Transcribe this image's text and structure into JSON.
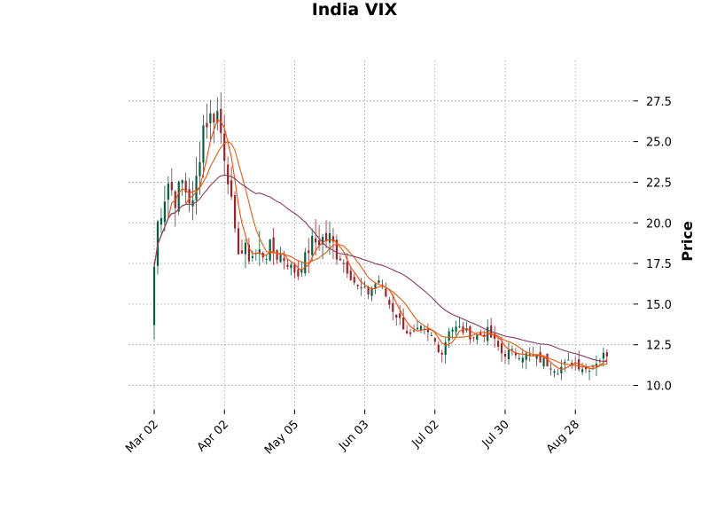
{
  "chart_data": {
    "type": "candlestick",
    "title": "India VIX",
    "ylabel": "Price",
    "xlabel": "",
    "ylim": [
      8.5,
      30.0
    ],
    "y_ticks": [
      10.0,
      12.5,
      15.0,
      17.5,
      20.0,
      22.5,
      25.0,
      27.5
    ],
    "y_tick_labels": [
      "10.0",
      "12.5",
      "15.0",
      "17.5",
      "20.0",
      "22.5",
      "25.0",
      "27.5"
    ],
    "x_ticks": [
      {
        "label": "Mar 02",
        "index": 0
      },
      {
        "label": "Apr 02",
        "index": 20
      },
      {
        "label": "May 05",
        "index": 40
      },
      {
        "label": "Jun 03",
        "index": 60
      },
      {
        "label": "Jul 02",
        "index": 80
      },
      {
        "label": "Jul 30",
        "index": 100
      },
      {
        "label": "Aug 28",
        "index": 120
      }
    ],
    "grid": true,
    "up_color": "#006340",
    "down_color": "#a02128",
    "ma_colors": [
      "#ff4500",
      "#e85c0d",
      "#8b3a62"
    ],
    "anchors": [
      [
        0,
        17.3
      ],
      [
        1,
        20.0
      ],
      [
        4,
        22.5
      ],
      [
        6,
        21.5
      ],
      [
        8,
        22.5
      ],
      [
        11,
        21.0
      ],
      [
        14,
        26.0
      ],
      [
        16,
        26.5
      ],
      [
        18,
        26.8
      ],
      [
        21,
        23.0
      ],
      [
        23,
        19.0
      ],
      [
        25,
        18.2
      ],
      [
        28,
        18.0
      ],
      [
        33,
        18.3
      ],
      [
        36,
        18.0
      ],
      [
        38,
        17.5
      ],
      [
        41,
        16.8
      ],
      [
        44,
        18.5
      ],
      [
        47,
        19.0
      ],
      [
        50,
        19.0
      ],
      [
        54,
        17.5
      ],
      [
        58,
        16.0
      ],
      [
        61,
        15.7
      ],
      [
        64,
        16.5
      ],
      [
        67,
        15.0
      ],
      [
        70,
        14.0
      ],
      [
        73,
        13.0
      ],
      [
        76,
        13.4
      ],
      [
        79,
        13.0
      ],
      [
        82,
        12.0
      ],
      [
        84,
        13.5
      ],
      [
        87,
        13.5
      ],
      [
        91,
        13.0
      ],
      [
        95,
        13.3
      ],
      [
        99,
        12.0
      ],
      [
        103,
        12.0
      ],
      [
        107,
        11.8
      ],
      [
        111,
        11.5
      ],
      [
        115,
        11.0
      ],
      [
        119,
        11.5
      ],
      [
        123,
        11.0
      ],
      [
        126,
        11.5
      ],
      [
        129,
        12.0
      ]
    ]
  }
}
